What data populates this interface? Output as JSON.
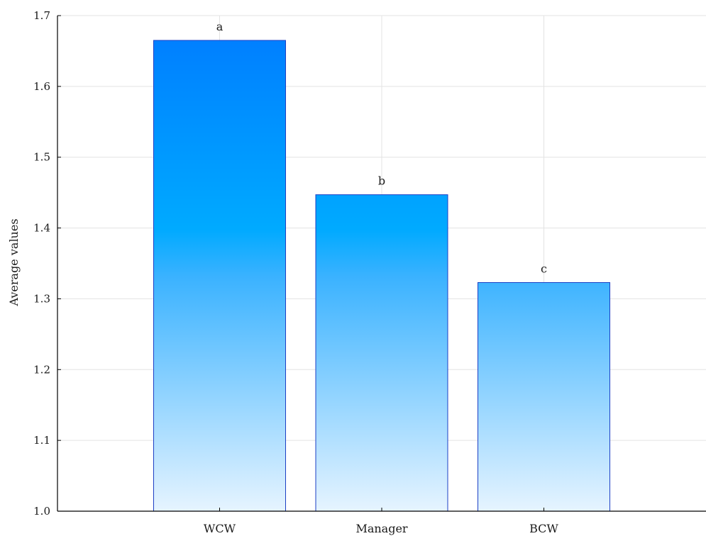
{
  "chart_data": {
    "type": "bar",
    "title": "",
    "xlabel": "",
    "ylabel": "Average values",
    "categories": [
      "WCW",
      "Manager",
      "BCW"
    ],
    "values": [
      1.665,
      1.447,
      1.323
    ],
    "bar_labels": [
      "a",
      "b",
      "c"
    ],
    "ylim": [
      1.0,
      1.7
    ],
    "yticks": [
      "1.0",
      "1.1",
      "1.2",
      "1.3",
      "1.4",
      "1.5",
      "1.6",
      "1.7"
    ],
    "grid": true,
    "legend": "none",
    "colors": {
      "bar_top": "#0080ff",
      "bar_mid": "#00aaff",
      "bar_bottom": "#e6f4ff",
      "bar_edge": "#1c3fc4",
      "grid": "#e3e3e3",
      "axis": "#000000"
    }
  }
}
